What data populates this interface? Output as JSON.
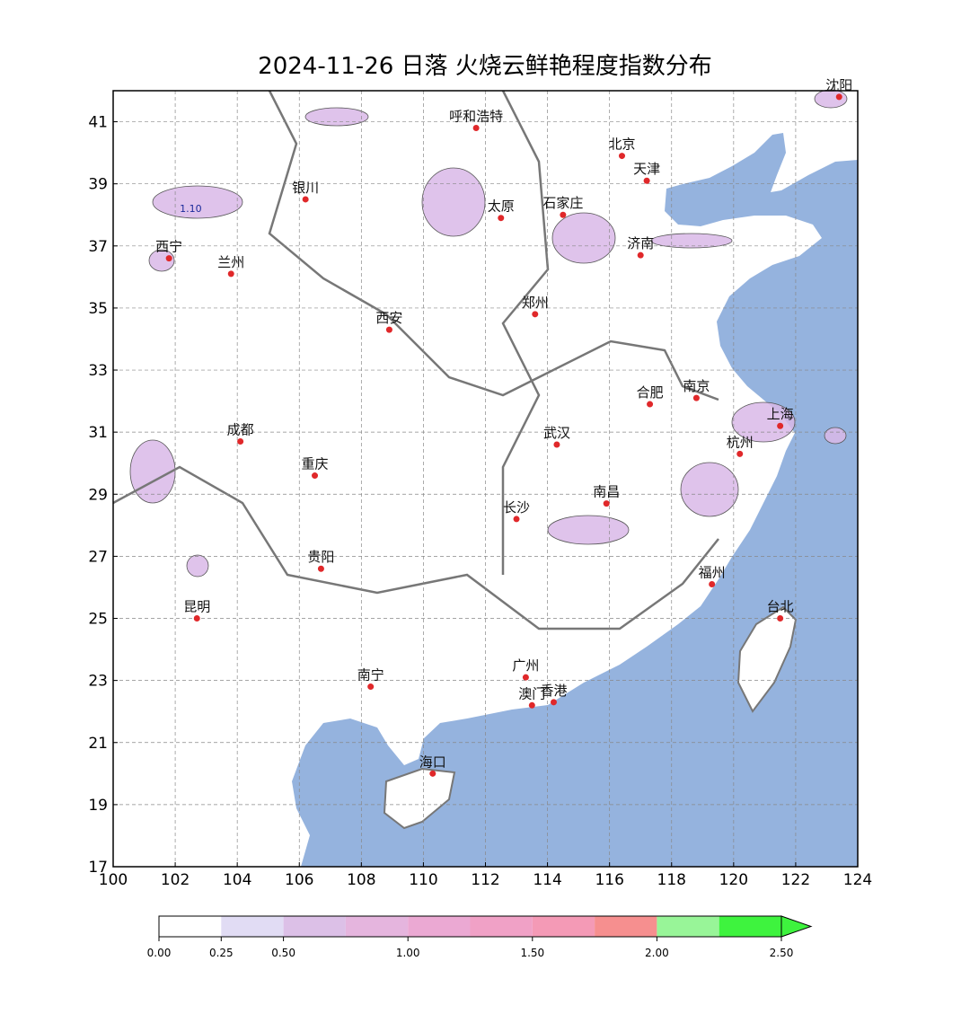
{
  "map": {
    "title": "2024-11-26 日落 火烧云鲜艳程度指数分布",
    "xlim": [
      100,
      124
    ],
    "ylim": [
      17,
      42
    ],
    "xticks": [
      100,
      102,
      104,
      106,
      108,
      110,
      112,
      114,
      116,
      118,
      120,
      122,
      124
    ],
    "yticks": [
      17,
      19,
      21,
      23,
      25,
      27,
      29,
      31,
      33,
      35,
      37,
      39,
      41
    ],
    "grid": true,
    "land_color": "#ffffff",
    "sea_color": "#95b3de",
    "cities": [
      {
        "name": "沈阳",
        "lon": 123.4,
        "lat": 41.8
      },
      {
        "name": "呼和浩特",
        "lon": 111.7,
        "lat": 40.8
      },
      {
        "name": "北京",
        "lon": 116.4,
        "lat": 39.9
      },
      {
        "name": "天津",
        "lon": 117.2,
        "lat": 39.1
      },
      {
        "name": "银川",
        "lon": 106.2,
        "lat": 38.5
      },
      {
        "name": "太原",
        "lon": 112.5,
        "lat": 37.9
      },
      {
        "name": "石家庄",
        "lon": 114.5,
        "lat": 38.0
      },
      {
        "name": "西宁",
        "lon": 101.8,
        "lat": 36.6
      },
      {
        "name": "兰州",
        "lon": 103.8,
        "lat": 36.1
      },
      {
        "name": "济南",
        "lon": 117.0,
        "lat": 36.7
      },
      {
        "name": "西安",
        "lon": 108.9,
        "lat": 34.3
      },
      {
        "name": "郑州",
        "lon": 113.6,
        "lat": 34.8
      },
      {
        "name": "合肥",
        "lon": 117.3,
        "lat": 31.9
      },
      {
        "name": "南京",
        "lon": 118.8,
        "lat": 32.1
      },
      {
        "name": "上海",
        "lon": 121.5,
        "lat": 31.2
      },
      {
        "name": "成都",
        "lon": 104.1,
        "lat": 30.7
      },
      {
        "name": "武汉",
        "lon": 114.3,
        "lat": 30.6
      },
      {
        "name": "杭州",
        "lon": 120.2,
        "lat": 30.3
      },
      {
        "name": "重庆",
        "lon": 106.5,
        "lat": 29.6
      },
      {
        "name": "南昌",
        "lon": 115.9,
        "lat": 28.7
      },
      {
        "name": "长沙",
        "lon": 113.0,
        "lat": 28.2
      },
      {
        "name": "贵阳",
        "lon": 106.7,
        "lat": 26.6
      },
      {
        "name": "福州",
        "lon": 119.3,
        "lat": 26.1
      },
      {
        "name": "昆明",
        "lon": 102.7,
        "lat": 25.0
      },
      {
        "name": "台北",
        "lon": 121.5,
        "lat": 25.0
      },
      {
        "name": "南宁",
        "lon": 108.3,
        "lat": 22.8
      },
      {
        "name": "广州",
        "lon": 113.3,
        "lat": 23.1
      },
      {
        "name": "澳门",
        "lon": 113.5,
        "lat": 22.2
      },
      {
        "name": "香港",
        "lon": 114.2,
        "lat": 22.3
      },
      {
        "name": "海口",
        "lon": 110.3,
        "lat": 20.0
      }
    ],
    "annotations": [
      {
        "text": "1.10",
        "lon": 102.5,
        "lat": 38.1
      }
    ],
    "colorbar": {
      "levels": [
        0,
        0.25,
        0.5,
        0.75,
        1,
        1.25,
        1.5,
        1.75,
        2,
        2.25,
        2.5
      ],
      "colors": [
        "#ffffff",
        "#e1dcf4",
        "#dcc0e7",
        "#e5b5de",
        "#eba9d3",
        "#f0a1c6",
        "#f49ab6",
        "#f68f8f",
        "#98f598",
        "#3ef33e"
      ],
      "extend_color": "#3ef33e",
      "ticks": [
        {
          "value": 0,
          "label": "0.00"
        },
        {
          "value": 0.25,
          "label": "0.25"
        },
        {
          "value": 0.5,
          "label": "0.50"
        },
        {
          "value": 1,
          "label": "1.00"
        },
        {
          "value": 1.5,
          "label": "1.50"
        },
        {
          "value": 2,
          "label": "2.00"
        },
        {
          "value": 2.5,
          "label": "2.50"
        }
      ]
    }
  }
}
